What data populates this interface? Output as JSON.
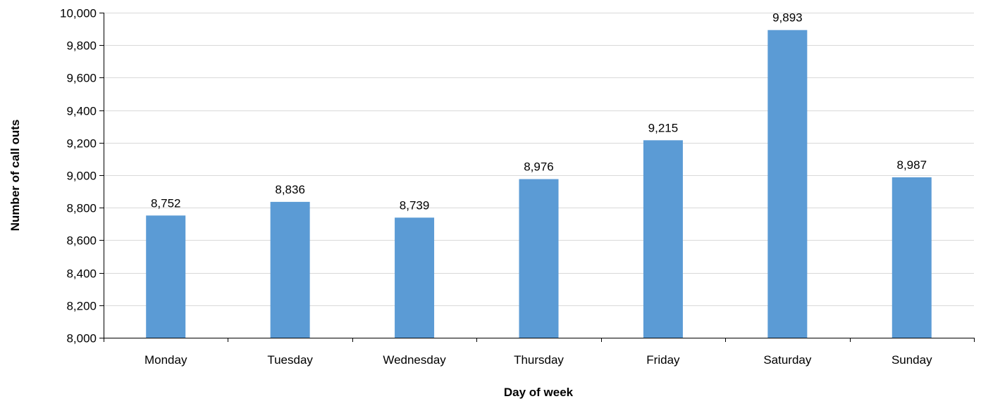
{
  "chart_data": {
    "type": "bar",
    "title": "",
    "xlabel": "Day of week",
    "ylabel": "Number of call outs",
    "categories": [
      "Monday",
      "Tuesday",
      "Wednesday",
      "Thursday",
      "Friday",
      "Saturday",
      "Sunday"
    ],
    "values": [
      8752,
      8836,
      8739,
      8976,
      9215,
      9893,
      8987
    ],
    "data_labels": [
      "8,752",
      "8,836",
      "8,739",
      "8,976",
      "9,215",
      "9,893",
      "8,987"
    ],
    "ylim": [
      8000,
      10000
    ],
    "yticks": [
      8000,
      8200,
      8400,
      8600,
      8800,
      9000,
      9200,
      9400,
      9600,
      9800,
      10000
    ],
    "ytick_labels": [
      "8,000",
      "8,200",
      "8,400",
      "8,600",
      "8,800",
      "9,000",
      "9,200",
      "9,400",
      "9,600",
      "9,800",
      "10,000"
    ],
    "grid": true,
    "legend": "none",
    "bar_color": "#5b9bd5",
    "grid_color": "#d9d9d9"
  }
}
